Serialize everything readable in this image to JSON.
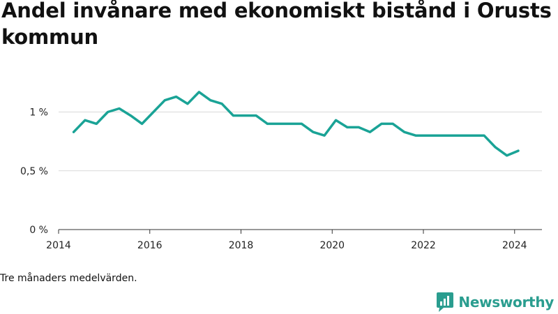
{
  "title": "Andel invånare med ekonomiskt bistånd i Orusts kommun",
  "footnote": "Tre månaders medelvärden.",
  "brand": {
    "name": "Newsworthy",
    "icon": "newsworthy-logo-icon",
    "color": "#2a9d8f"
  },
  "chart_data": {
    "type": "line",
    "title": "Andel invånare med ekonomiskt bistånd i Orusts kommun",
    "xlabel": "",
    "ylabel": "",
    "xlim": [
      2014,
      2024.6
    ],
    "ylim": [
      0,
      1.3
    ],
    "x_ticks": [
      2014,
      2016,
      2018,
      2020,
      2022,
      2024
    ],
    "x_tick_labels": [
      "2014",
      "2016",
      "2018",
      "2020",
      "2022",
      "2024"
    ],
    "y_ticks": [
      0,
      0.5,
      1
    ],
    "y_tick_labels": [
      "0 %",
      "0,5 %",
      "1 %"
    ],
    "grid": "horizontal",
    "line_color": "#1aa396",
    "series": [
      {
        "name": "",
        "x": [
          2014.33,
          2014.58,
          2014.83,
          2015.08,
          2015.33,
          2015.58,
          2015.83,
          2016.08,
          2016.33,
          2016.58,
          2016.83,
          2017.08,
          2017.33,
          2017.58,
          2017.83,
          2018.08,
          2018.33,
          2018.58,
          2018.83,
          2019.08,
          2019.33,
          2019.58,
          2019.83,
          2020.08,
          2020.33,
          2020.58,
          2020.83,
          2021.08,
          2021.33,
          2021.58,
          2021.83,
          2022.08,
          2022.33,
          2022.58,
          2022.83,
          2023.08,
          2023.33,
          2023.58,
          2023.83,
          2024.08
        ],
        "values": [
          0.83,
          0.93,
          0.9,
          1.0,
          1.03,
          0.97,
          0.9,
          1.0,
          1.1,
          1.13,
          1.07,
          1.17,
          1.1,
          1.07,
          0.97,
          0.97,
          0.97,
          0.9,
          0.9,
          0.9,
          0.9,
          0.83,
          0.8,
          0.93,
          0.87,
          0.87,
          0.83,
          0.9,
          0.9,
          0.83,
          0.8,
          0.8,
          0.8,
          0.8,
          0.8,
          0.8,
          0.8,
          0.7,
          0.63,
          0.67
        ]
      }
    ]
  }
}
